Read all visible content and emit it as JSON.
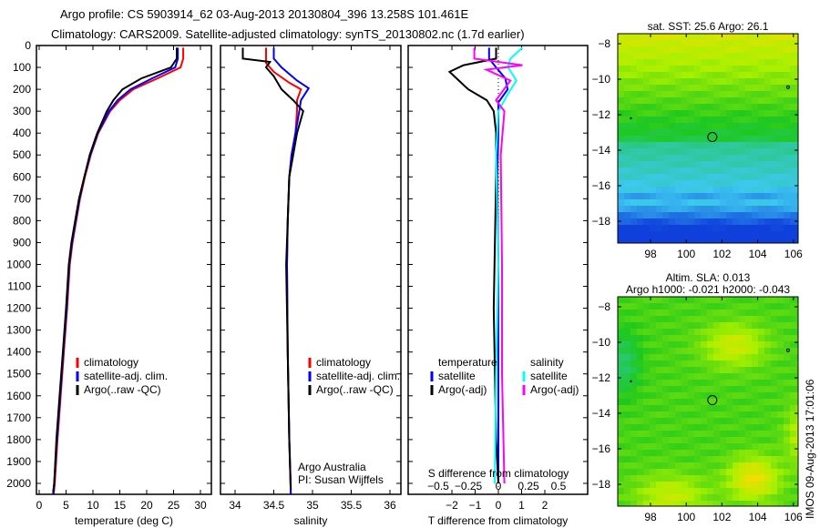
{
  "title_line1": "Argo profile: CS 5903914_62 03-Aug-2013 20130804_396 13.258S 101.461E",
  "title_line2": "Climatology: CARS2009. Satellite-adjusted climatology: synTS_20130802.nc (1.7d earlier)",
  "colors": {
    "climatology": "#ff0000",
    "satellite": "#0000ff",
    "argo": "#000000",
    "s_satellite": "#00ffff",
    "s_argo": "#ff00ff"
  },
  "chart_data": [
    {
      "type": "line",
      "id": "temperature",
      "xlabel": "temperature (deg C)",
      "xlim": [
        -0.5,
        31
      ],
      "xticks": [
        0,
        5,
        10,
        15,
        20,
        25,
        30
      ],
      "ylim": [
        2050,
        0
      ],
      "yticks": [
        0,
        100,
        200,
        300,
        400,
        500,
        600,
        700,
        800,
        900,
        1000,
        1100,
        1200,
        1300,
        1400,
        1500,
        1600,
        1700,
        1800,
        1900,
        2000
      ],
      "legend": [
        "climatology",
        "satellite-adj. clim.",
        "Argo(..raw -QC)"
      ],
      "series": [
        {
          "name": "climatology",
          "color": "climatology",
          "points": [
            [
              26.8,
              10
            ],
            [
              26.8,
              60
            ],
            [
              26.3,
              100
            ],
            [
              22,
              150
            ],
            [
              17.5,
              200
            ],
            [
              15,
              250
            ],
            [
              13.2,
              300
            ],
            [
              11,
              400
            ],
            [
              9.6,
              500
            ],
            [
              8.5,
              600
            ],
            [
              7.6,
              700
            ],
            [
              6.9,
              800
            ],
            [
              6.2,
              900
            ],
            [
              5.7,
              1000
            ],
            [
              5.2,
              1200
            ],
            [
              4.6,
              1400
            ],
            [
              4,
              1600
            ],
            [
              3.4,
              1800
            ],
            [
              2.9,
              2000
            ],
            [
              2.7,
              2050
            ]
          ]
        },
        {
          "name": "satellite-adj. clim.",
          "color": "satellite",
          "points": [
            [
              25.8,
              10
            ],
            [
              25.8,
              60
            ],
            [
              25.3,
              100
            ],
            [
              21,
              150
            ],
            [
              17,
              200
            ],
            [
              14.6,
              250
            ],
            [
              13,
              300
            ],
            [
              10.9,
              400
            ],
            [
              9.5,
              500
            ],
            [
              8.4,
              600
            ],
            [
              7.5,
              700
            ],
            [
              6.8,
              800
            ],
            [
              6.1,
              900
            ],
            [
              5.6,
              1000
            ],
            [
              5.1,
              1200
            ],
            [
              4.5,
              1400
            ],
            [
              3.9,
              1600
            ],
            [
              3.3,
              1800
            ],
            [
              2.8,
              2000
            ],
            [
              2.6,
              2050
            ]
          ]
        },
        {
          "name": "Argo(..raw -QC)",
          "color": "argo",
          "points": [
            [
              25.6,
              10
            ],
            [
              25.6,
              60
            ],
            [
              24.5,
              100
            ],
            [
              19,
              150
            ],
            [
              15.5,
              200
            ],
            [
              13.8,
              250
            ],
            [
              12.6,
              300
            ],
            [
              10.8,
              400
            ],
            [
              9.4,
              500
            ],
            [
              8.4,
              600
            ],
            [
              7.4,
              700
            ],
            [
              6.7,
              800
            ],
            [
              6,
              900
            ],
            [
              5.5,
              1000
            ],
            [
              5,
              1200
            ],
            [
              4.4,
              1400
            ],
            [
              3.8,
              1600
            ],
            [
              3.2,
              1800
            ],
            [
              2.8,
              2000
            ],
            [
              2.6,
              2040
            ]
          ]
        }
      ]
    },
    {
      "type": "line",
      "id": "salinity",
      "xlabel": "salinity",
      "xlim": [
        33.8,
        36.2
      ],
      "xticks": [
        34,
        34.5,
        35,
        35.5,
        36
      ],
      "ylim": [
        2050,
        0
      ],
      "legend": [
        "climatology",
        "satellite-adj. clim.",
        "Argo(..raw -QC)"
      ],
      "annotation": [
        "Argo Australia",
        "PI: Susan Wijffels"
      ],
      "series": [
        {
          "name": "climatology",
          "color": "climatology",
          "points": [
            [
              34.4,
              10
            ],
            [
              34.4,
              80
            ],
            [
              34.5,
              120
            ],
            [
              34.7,
              170
            ],
            [
              34.85,
              200
            ],
            [
              34.8,
              250
            ],
            [
              34.8,
              300
            ],
            [
              34.78,
              400
            ],
            [
              34.73,
              500
            ],
            [
              34.7,
              600
            ],
            [
              34.68,
              800
            ],
            [
              34.67,
              1000
            ],
            [
              34.68,
              1400
            ],
            [
              34.7,
              1800
            ],
            [
              34.72,
              2050
            ]
          ]
        },
        {
          "name": "satellite-adj. clim.",
          "color": "satellite",
          "points": [
            [
              34.5,
              10
            ],
            [
              34.5,
              60
            ],
            [
              34.6,
              100
            ],
            [
              34.8,
              160
            ],
            [
              34.95,
              195
            ],
            [
              34.85,
              250
            ],
            [
              34.83,
              300
            ],
            [
              34.78,
              400
            ],
            [
              34.73,
              500
            ],
            [
              34.7,
              600
            ],
            [
              34.68,
              800
            ],
            [
              34.67,
              1000
            ],
            [
              34.68,
              1400
            ],
            [
              34.7,
              1800
            ],
            [
              34.72,
              2050
            ]
          ]
        },
        {
          "name": "Argo(..raw -QC)",
          "color": "argo",
          "points": [
            [
              34.1,
              10
            ],
            [
              34.1,
              60
            ],
            [
              34.45,
              75
            ],
            [
              34.4,
              100
            ],
            [
              34.5,
              140
            ],
            [
              34.6,
              200
            ],
            [
              34.75,
              250
            ],
            [
              34.88,
              300
            ],
            [
              34.8,
              400
            ],
            [
              34.75,
              500
            ],
            [
              34.7,
              600
            ],
            [
              34.68,
              800
            ],
            [
              34.66,
              1000
            ],
            [
              34.68,
              1400
            ],
            [
              34.7,
              1800
            ],
            [
              34.72,
              2030
            ]
          ]
        }
      ]
    },
    {
      "type": "line",
      "id": "difference",
      "xlabel": "T difference from climatology",
      "xlim": [
        -2.9,
        2.9
      ],
      "xticks": [
        -2,
        -1,
        0,
        1,
        2
      ],
      "x2label": "S difference from climatology",
      "x2ticks": [
        -0.5,
        -0.25,
        0,
        0.25,
        0.5
      ],
      "legend_temperature": "temperature",
      "legend_salinity": "salinity",
      "legend_labels": [
        "satellite",
        "Argo(-adj)",
        "satellite",
        "Argo(-adj)"
      ],
      "series": [
        {
          "name": "T satellite",
          "color": "satellite",
          "axis": "T",
          "points": [
            [
              -0.4,
              10
            ],
            [
              -0.4,
              60
            ],
            [
              -0.1,
              100
            ],
            [
              0.3,
              150
            ],
            [
              0.4,
              200
            ],
            [
              0,
              260
            ],
            [
              0,
              400
            ],
            [
              -0.05,
              600
            ],
            [
              0,
              1000
            ],
            [
              0,
              1500
            ],
            [
              0,
              2000
            ]
          ]
        },
        {
          "name": "T Argo(-adj)",
          "color": "argo",
          "axis": "T",
          "points": [
            [
              -0.1,
              10
            ],
            [
              -0.1,
              60
            ],
            [
              -1.5,
              90
            ],
            [
              -2.1,
              120
            ],
            [
              -1.3,
              200
            ],
            [
              -0.5,
              250
            ],
            [
              -0.2,
              300
            ],
            [
              -0.1,
              400
            ],
            [
              -0.1,
              600
            ],
            [
              -0.15,
              900
            ],
            [
              -0.2,
              1200
            ],
            [
              -0.15,
              1500
            ],
            [
              -0.1,
              1800
            ],
            [
              0,
              2000
            ]
          ]
        },
        {
          "name": "S satellite",
          "color": "s_satellite",
          "axis": "S",
          "points": [
            [
              0.2,
              10
            ],
            [
              0.1,
              60
            ],
            [
              0.08,
              100
            ],
            [
              0.15,
              160
            ],
            [
              0.08,
              220
            ],
            [
              0,
              300
            ],
            [
              -0.02,
              500
            ],
            [
              0,
              1000
            ],
            [
              -0.02,
              1500
            ],
            [
              -0.03,
              2000
            ]
          ]
        },
        {
          "name": "S Argo(-adj)",
          "color": "s_argo",
          "axis": "S",
          "points": [
            [
              -0.2,
              10
            ],
            [
              -0.2,
              60
            ],
            [
              0.2,
              90
            ],
            [
              -0.1,
              110
            ],
            [
              0.1,
              160
            ],
            [
              -0.02,
              250
            ],
            [
              0.05,
              300
            ],
            [
              0.02,
              500
            ],
            [
              0.03,
              1000
            ],
            [
              0.03,
              1500
            ],
            [
              0.05,
              2000
            ]
          ]
        }
      ]
    },
    {
      "type": "heatmap",
      "id": "sst-map",
      "title": "sat. SST: 25.6  Argo: 26.1",
      "xticks": [
        98,
        100,
        102,
        104,
        106
      ],
      "yticks": [
        -8,
        -10,
        -12,
        -14,
        -16,
        -18
      ],
      "xlim": [
        96.2,
        106.8
      ],
      "ylim": [
        -19.2,
        -7.4
      ],
      "marker": [
        101.461,
        -13.258
      ]
    },
    {
      "type": "heatmap",
      "id": "sla-map",
      "title": "Altim. SLA: 0.013",
      "subtitle": "Argo h1000: -0.021 h2000: -0.043",
      "xticks": [
        98,
        100,
        102,
        104,
        106
      ],
      "yticks": [
        -8,
        -10,
        -12,
        -14,
        -16,
        -18
      ],
      "xlim": [
        96.2,
        106.8
      ],
      "ylim": [
        -19.2,
        -7.4
      ],
      "marker": [
        101.461,
        -13.258
      ]
    }
  ],
  "timestamp": "IMOS 09-Aug-2013 17:01:06"
}
